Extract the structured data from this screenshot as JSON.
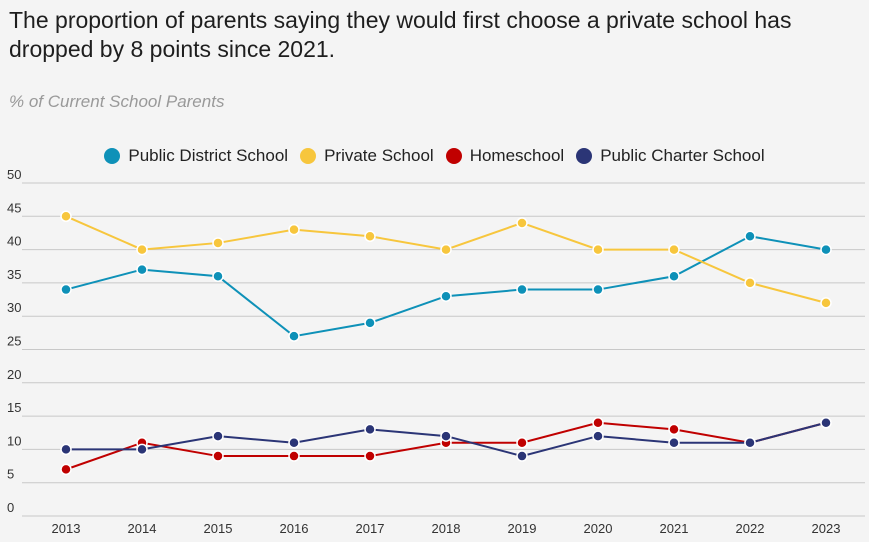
{
  "title": "The proportion of parents saying they would first choose a private school has dropped by 8 points since 2021.",
  "subtitle": "% of Current School Parents",
  "chart_data": {
    "type": "line",
    "title": "The proportion of parents saying they would first choose a private school has dropped by 8 points since 2021.",
    "ylabel": "% of Current School Parents",
    "x": [
      "2013",
      "2014",
      "2015",
      "2016",
      "2017",
      "2018",
      "2019",
      "2020",
      "2021",
      "2022",
      "2023"
    ],
    "ylim": [
      0,
      50
    ],
    "yticks": [
      0,
      5,
      10,
      15,
      20,
      25,
      30,
      35,
      40,
      45,
      50
    ],
    "grid": true,
    "legend": "top",
    "series": [
      {
        "name": "Public District School",
        "color": "#0e91b8",
        "values": [
          34,
          37,
          36,
          27,
          29,
          33,
          34,
          34,
          36,
          42,
          40
        ]
      },
      {
        "name": "Private School",
        "color": "#f7c63d",
        "values": [
          45,
          40,
          41,
          43,
          42,
          40,
          44,
          40,
          40,
          35,
          32
        ]
      },
      {
        "name": "Homeschool",
        "color": "#c00000",
        "values": [
          7,
          11,
          9,
          9,
          9,
          11,
          11,
          14,
          13,
          11,
          14
        ]
      },
      {
        "name": "Public Charter School",
        "color": "#2b3576",
        "values": [
          10,
          10,
          12,
          11,
          13,
          12,
          9,
          12,
          11,
          11,
          14
        ]
      }
    ]
  }
}
